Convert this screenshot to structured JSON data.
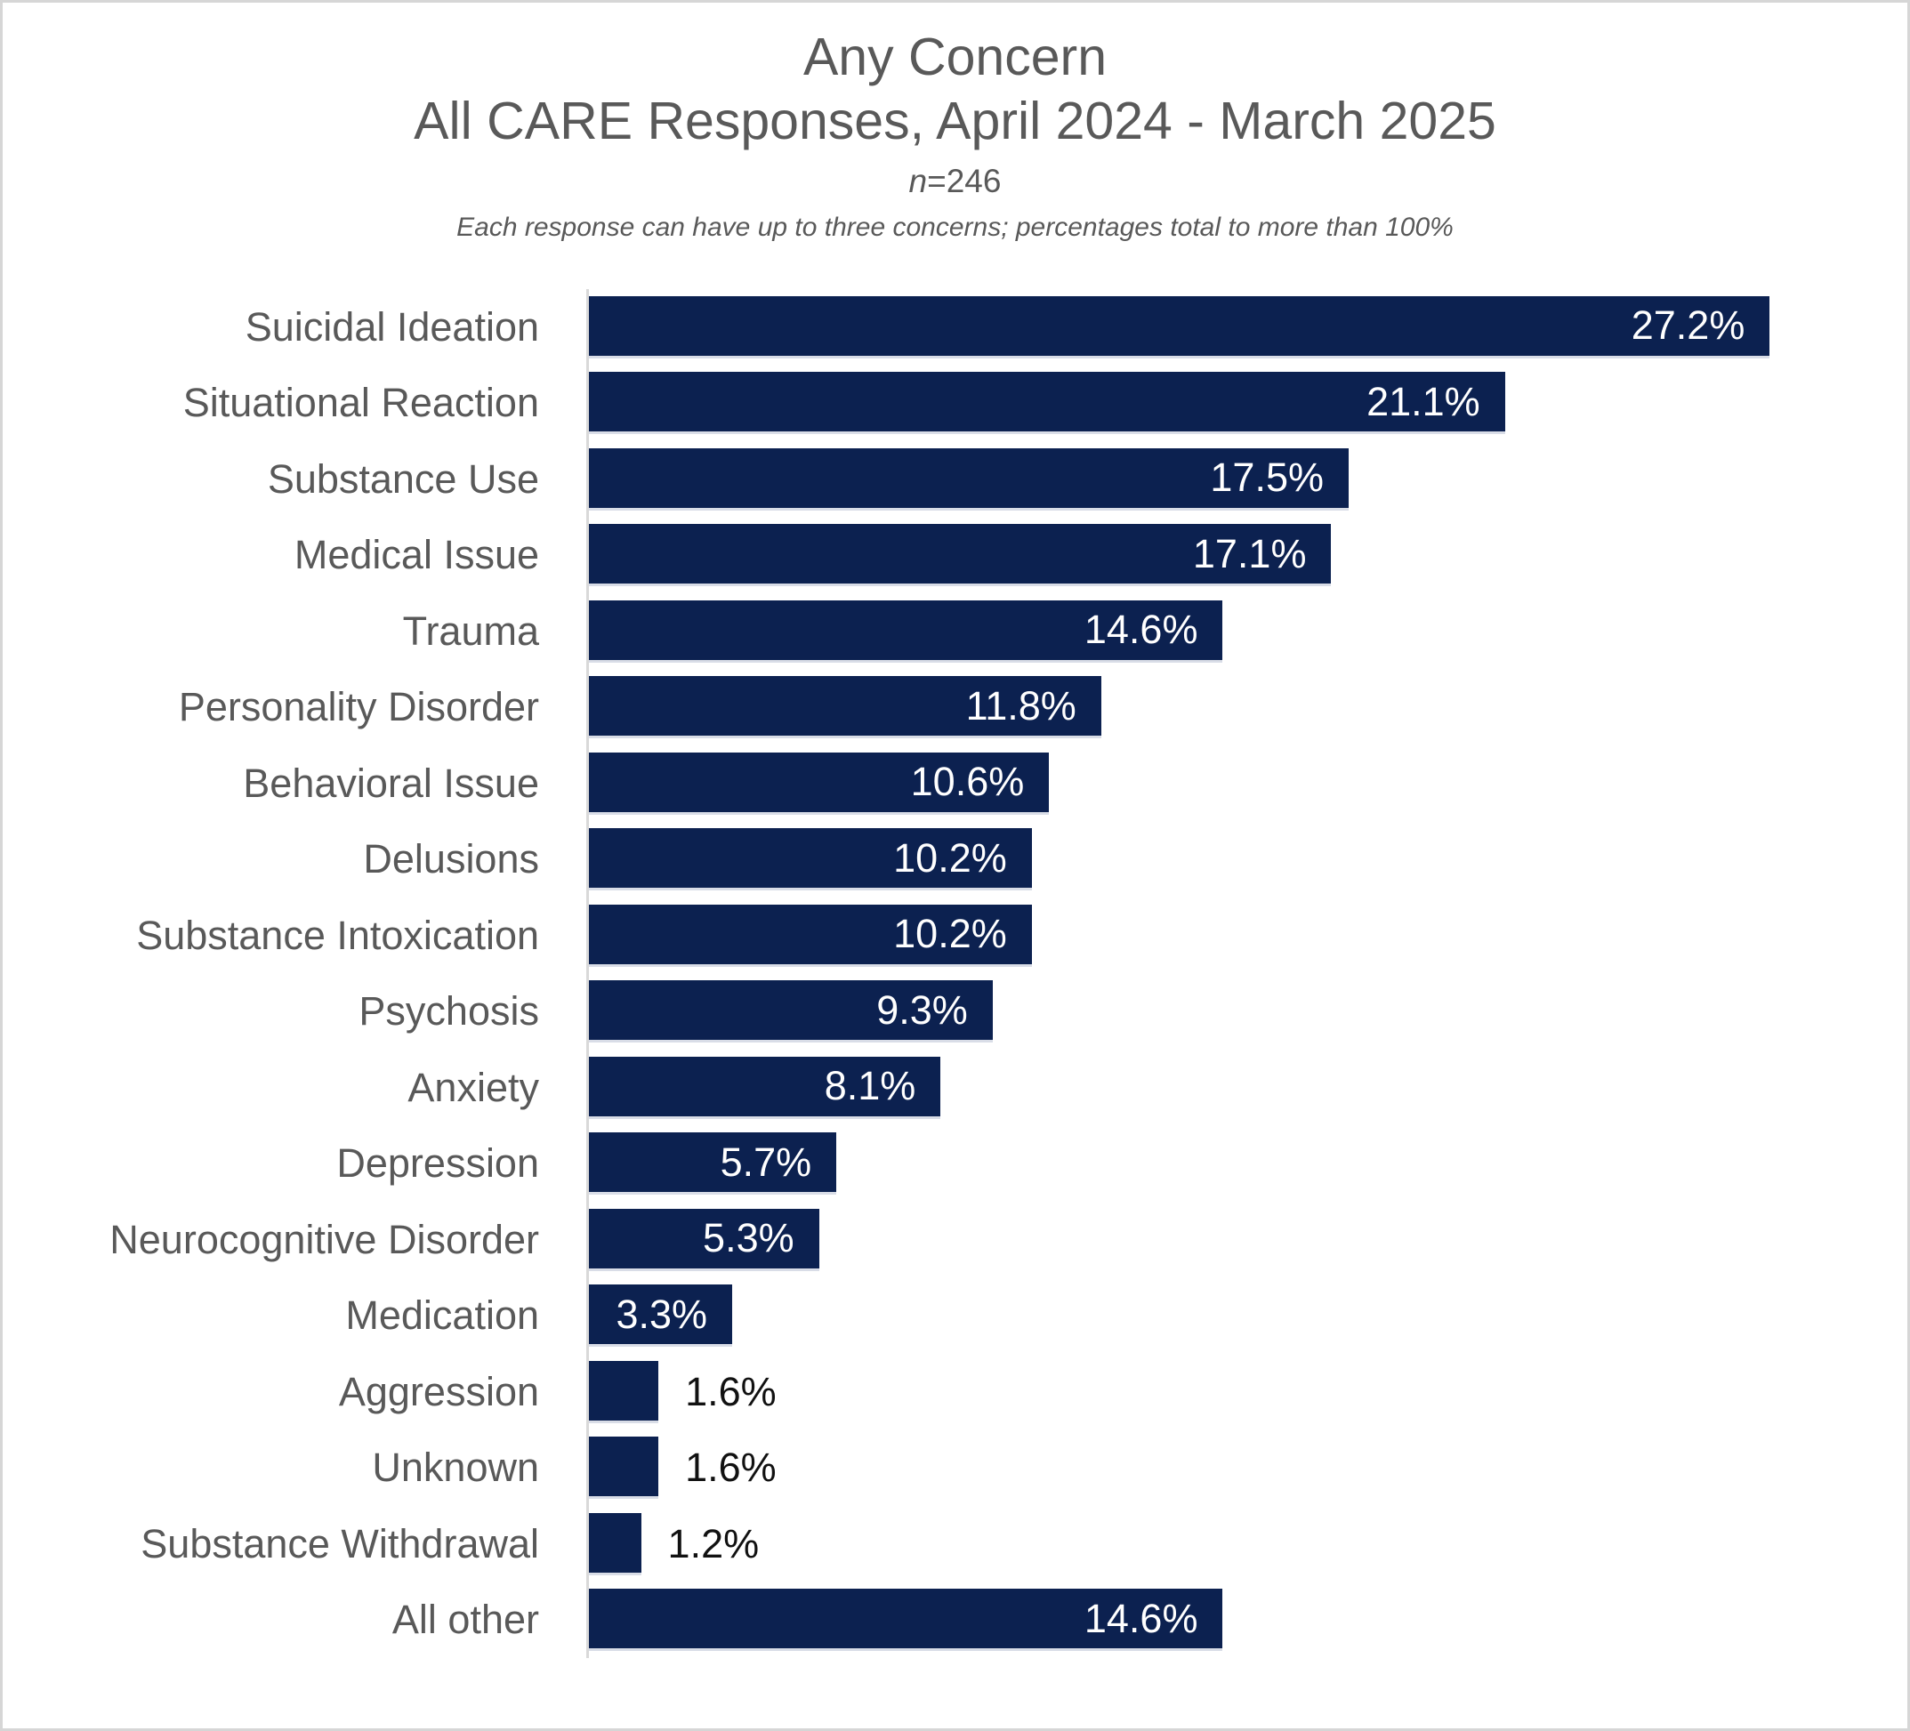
{
  "header": {
    "title_line1": "Any Concern",
    "title_line2": "All CARE Responses, April 2024 - March 2025",
    "sample_prefix": "n",
    "sample_rest": "=246",
    "note": "Each response can have up to three concerns; percentages total to more than 100%"
  },
  "chart_data": {
    "type": "bar",
    "orientation": "horizontal",
    "title": "Any Concern",
    "subtitle": "All CARE Responses, April 2024 - March 2025",
    "n": 246,
    "note": "Each response can have up to three concerns; percentages total to more than 100%",
    "categories": [
      "Suicidal Ideation",
      "Situational Reaction",
      "Substance Use",
      "Medical Issue",
      "Trauma",
      "Personality Disorder",
      "Behavioral Issue",
      "Delusions",
      "Substance Intoxication",
      "Psychosis",
      "Anxiety",
      "Depression",
      "Neurocognitive Disorder",
      "Medication",
      "Aggression",
      "Unknown",
      "Substance Withdrawal",
      "All other"
    ],
    "values": [
      27.2,
      21.1,
      17.5,
      17.1,
      14.6,
      11.8,
      10.6,
      10.2,
      10.2,
      9.3,
      8.1,
      5.7,
      5.3,
      3.3,
      1.6,
      1.6,
      1.2,
      14.6
    ],
    "value_labels": [
      "27.2%",
      "21.1%",
      "17.5%",
      "17.1%",
      "14.6%",
      "11.8%",
      "10.6%",
      "10.2%",
      "10.2%",
      "9.3%",
      "8.1%",
      "5.7%",
      "5.3%",
      "3.3%",
      "1.6%",
      "1.6%",
      "1.2%",
      "14.6%"
    ],
    "xlim": [
      0,
      28
    ],
    "grid": false,
    "legend": false,
    "xlabel": "",
    "ylabel": "",
    "bar_color": "#0C2150",
    "category_label_color": "#595959",
    "inside_value_color": "#ffffff",
    "outside_value_color": "#111111",
    "axis_line_color": "#d9d9d9",
    "bar_edge_color": "#d9dde7"
  }
}
